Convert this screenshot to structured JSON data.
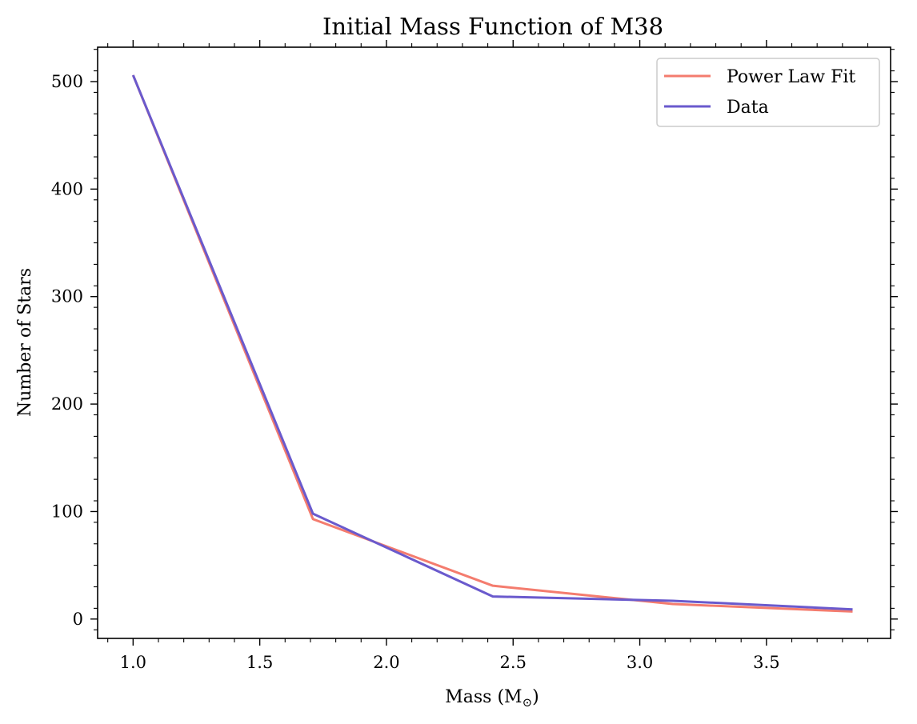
{
  "chart_data": {
    "type": "line",
    "title": "Initial Mass Function of M38",
    "xlabel": "Mass (M",
    "xlabel_sub": "⊙",
    "xlabel_close": ")",
    "ylabel": "Number of Stars",
    "xlim": [
      0.86,
      3.99
    ],
    "ylim": [
      -18,
      532
    ],
    "xticks": [
      1.0,
      1.5,
      2.0,
      2.5,
      3.0,
      3.5
    ],
    "xtick_labels": [
      "1.0",
      "1.5",
      "2.0",
      "2.5",
      "3.0",
      "3.5"
    ],
    "yticks": [
      0,
      100,
      200,
      300,
      400,
      500
    ],
    "ytick_labels": [
      "0",
      "100",
      "200",
      "300",
      "400",
      "500"
    ],
    "grid": false,
    "legend_position": "top-right",
    "series": [
      {
        "name": "Power Law Fit",
        "color": "#f47c6e",
        "x": [
          1.0,
          1.71,
          2.42,
          3.13,
          3.84
        ],
        "y": [
          506,
          93,
          31,
          14,
          7
        ]
      },
      {
        "name": "Data",
        "color": "#6a5acd",
        "x": [
          1.0,
          1.71,
          2.42,
          3.13,
          3.84
        ],
        "y": [
          506,
          98,
          21,
          17,
          9
        ]
      }
    ]
  }
}
